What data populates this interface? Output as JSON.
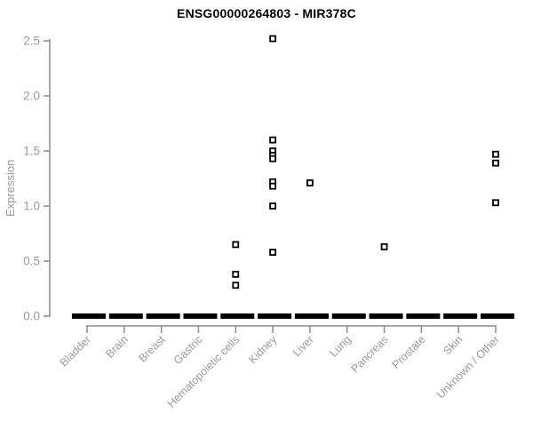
{
  "chart_data": {
    "type": "scatter",
    "title": "ENSG00000264803 - MIR378C",
    "ylabel": "Expression",
    "xlabel": "",
    "ylim": [
      0,
      2.5
    ],
    "yticks": [
      0.0,
      0.5,
      1.0,
      1.5,
      2.0,
      2.5
    ],
    "ytick_labels": [
      "0.0",
      "0.5",
      "1.0",
      "1.5",
      "2.0",
      "2.5"
    ],
    "grid": false,
    "legend": false,
    "point_style": "open-square",
    "categories": [
      "Bladder",
      "Brain",
      "Breast",
      "Gastric",
      "Hematopoietic cells",
      "Kidney",
      "Liver",
      "Lung",
      "Pancreas",
      "Prostate",
      "Skin",
      "Unknown / Other"
    ],
    "series": [
      {
        "category": "Bladder",
        "zero_cluster": true,
        "points": []
      },
      {
        "category": "Brain",
        "zero_cluster": true,
        "points": []
      },
      {
        "category": "Breast",
        "zero_cluster": true,
        "points": []
      },
      {
        "category": "Gastric",
        "zero_cluster": true,
        "points": []
      },
      {
        "category": "Hematopoietic cells",
        "zero_cluster": true,
        "points": [
          0.65,
          0.38,
          0.28
        ]
      },
      {
        "category": "Kidney",
        "zero_cluster": true,
        "points": [
          2.52,
          1.6,
          1.5,
          1.46,
          1.43,
          1.22,
          1.18,
          1.0,
          0.58
        ]
      },
      {
        "category": "Liver",
        "zero_cluster": true,
        "points": [
          1.21
        ]
      },
      {
        "category": "Lung",
        "zero_cluster": true,
        "points": []
      },
      {
        "category": "Pancreas",
        "zero_cluster": true,
        "points": [
          0.63
        ]
      },
      {
        "category": "Prostate",
        "zero_cluster": true,
        "points": []
      },
      {
        "category": "Skin",
        "zero_cluster": true,
        "points": []
      },
      {
        "category": "Unknown / Other",
        "zero_cluster": true,
        "points": [
          1.47,
          1.39,
          1.03
        ]
      }
    ],
    "colors": {
      "background": "#ffffff",
      "title": "#000000",
      "axis": "#8c8c8c",
      "tick_label": "#9a9a9a",
      "point_stroke": "#000000",
      "point_fill": "#ffffff",
      "zero_bar": "#000000"
    }
  }
}
